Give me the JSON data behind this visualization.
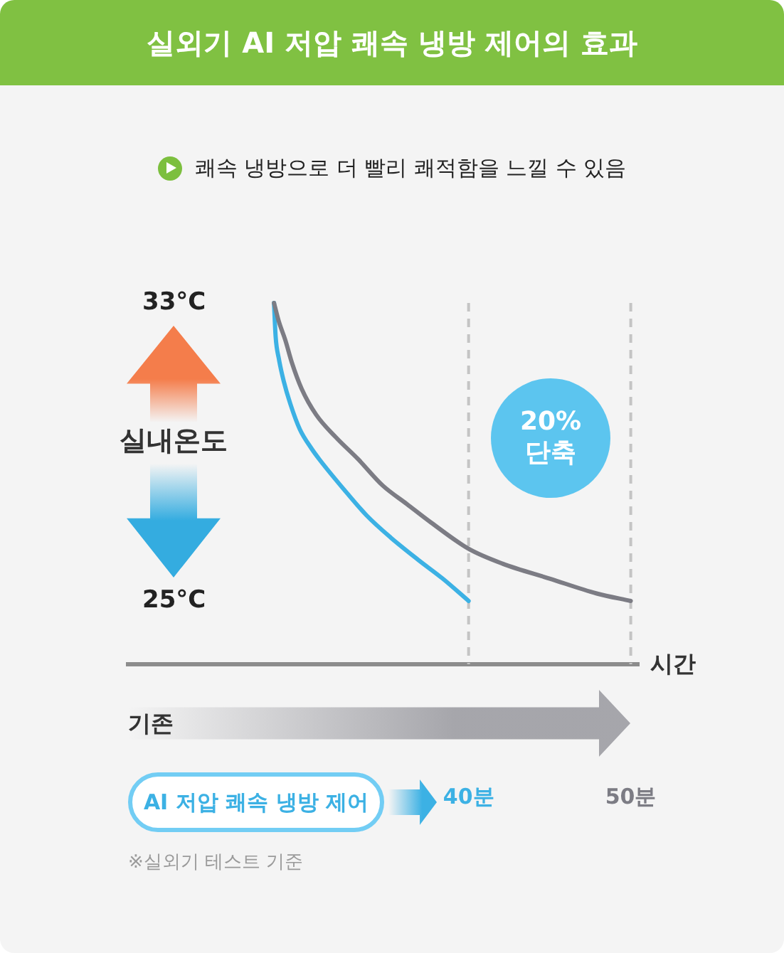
{
  "chart_data": {
    "type": "line",
    "title": "실외기 AI 저압 쾌속 냉방 제어의 효과",
    "subtitle": "쾌속 냉방으로 더 빨리 쾌적함을 느낄 수 있음",
    "xlabel": "시간",
    "ylabel": "실내온도",
    "xlim": [
      19,
      50.5
    ],
    "xticks": [
      {
        "value": 40,
        "label": "40분"
      },
      {
        "value": 50,
        "label": "50분"
      }
    ],
    "ylim": [
      23.3,
      33
    ],
    "yticks": [
      {
        "value": 33,
        "label": "33°C"
      },
      {
        "value": 25,
        "label": "25°C"
      }
    ],
    "series": [
      {
        "name": "기존",
        "color": "#7c7c84",
        "x": [
          28.0,
          28.3,
          28.7,
          29.1,
          29.7,
          30.6,
          31.8,
          33.2,
          34.7,
          36.2,
          37.7,
          40.0,
          42.1,
          45.0,
          47.9,
          50
        ],
        "values": [
          33,
          32.5,
          32.0,
          31.4,
          30.7,
          30.0,
          29.4,
          28.8,
          28.1,
          27.6,
          27.1,
          26.4,
          26.0,
          25.6,
          25.2,
          25.0
        ]
      },
      {
        "name": "AI 저압 쾌속 냉방 제어",
        "color": "#3cb1e4",
        "x": [
          28.0,
          28.1,
          28.3,
          28.6,
          29.0,
          29.6,
          30.3,
          30.8,
          32.3,
          33.7,
          35.2,
          36.9,
          38.4,
          40
        ],
        "values": [
          33,
          32.1,
          31.5,
          30.9,
          30.3,
          29.6,
          29.1,
          28.8,
          28.0,
          27.3,
          26.7,
          26.1,
          25.6,
          25.0
        ]
      }
    ],
    "ref_lines": [
      {
        "axis": "x",
        "value": 40,
        "color": "#c4c4c4",
        "line_style": "dashed"
      },
      {
        "axis": "x",
        "value": 50,
        "color": "#c4c4c4",
        "line_style": "dashed"
      }
    ],
    "annotations": [
      "20% 단축",
      "※실외기 테스트 기준"
    ],
    "legend": "bottom"
  }
}
